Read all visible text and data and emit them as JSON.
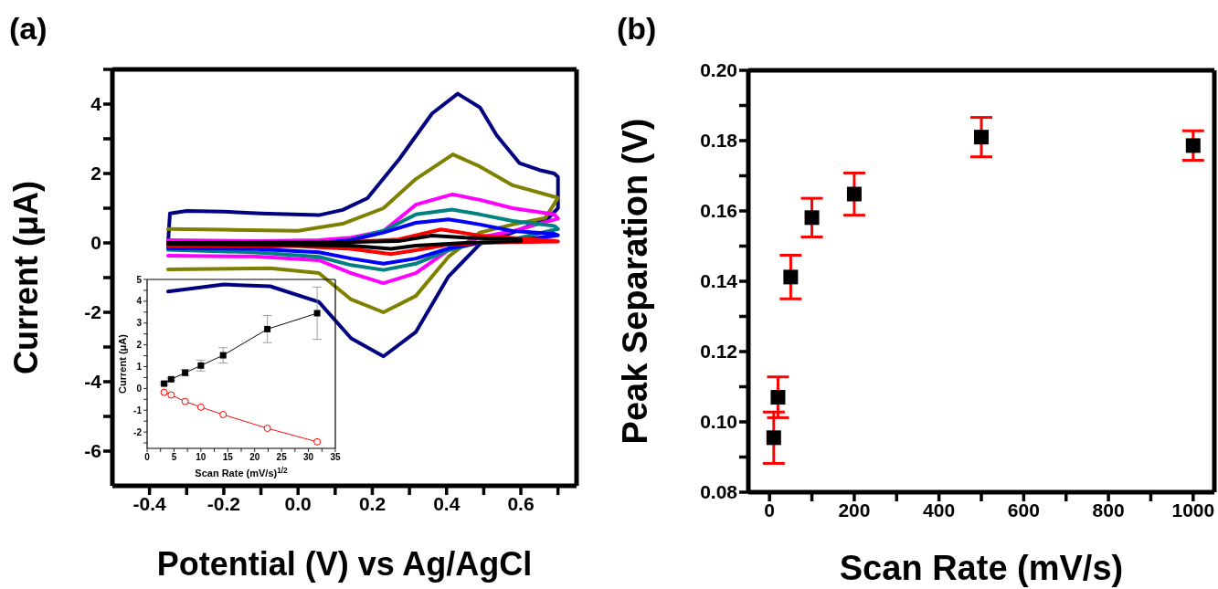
{
  "chart_data": [
    {
      "type": "line",
      "title": "(a)",
      "xlabel": "Potential (V) vs Ag/AgCl",
      "ylabel": "Current (μA)",
      "xlim": [
        -0.5,
        0.75
      ],
      "ylim": [
        -7,
        5
      ],
      "xticks": [
        -0.4,
        -0.2,
        {
          "value": 0,
          "label": "0.0"
        },
        0.2,
        0.4,
        0.6,
        {
          "value": -0.3,
          "label": null
        },
        {
          "value": -0.1,
          "label": null
        },
        {
          "value": 0.1,
          "label": null
        },
        {
          "value": 0.3,
          "label": null
        },
        {
          "value": 0.5,
          "label": null
        },
        {
          "value": 0.7,
          "label": null
        }
      ],
      "yticks": [
        -6,
        -4,
        -2,
        0,
        2,
        4,
        {
          "value": -5,
          "label": null
        },
        {
          "value": -3,
          "label": null
        },
        {
          "value": -1,
          "label": null
        },
        {
          "value": 1,
          "label": null
        },
        {
          "value": 3,
          "label": null
        },
        {
          "value": 5,
          "label": null
        }
      ],
      "grid": false,
      "legend": false,
      "marker": "none",
      "line_style": "solid",
      "series": [
        {
          "color": "#000080",
          "x": [
            -0.35,
            -0.345,
            -0.3,
            -0.2,
            -0.1,
            0.056,
            0.12,
            0.187,
            0.273,
            0.361,
            0.43,
            0.49,
            0.535,
            0.596,
            0.65,
            0.69,
            0.7,
            0.7,
            0.675,
            0.578,
            0.49,
            0.405,
            0.317,
            0.23,
            0.143,
            0.056,
            -0.075,
            -0.2,
            -0.35
          ],
          "values": [
            0,
            0.85,
            0.92,
            0.9,
            0.85,
            0.8,
            0.95,
            1.29,
            2.42,
            3.73,
            4.3,
            3.9,
            3.1,
            2.3,
            2.1,
            2.0,
            1.9,
            1.0,
            0.72,
            0.3,
            -0.03,
            -0.97,
            -2.57,
            -3.27,
            -2.75,
            -1.7,
            -1.25,
            -1.2,
            -1.4
          ]
        },
        {
          "color": "#808000",
          "x": [
            -0.35,
            -0.2,
            0.0,
            0.12,
            0.23,
            0.317,
            0.417,
            0.49,
            0.578,
            0.69,
            0.7,
            0.666,
            0.578,
            0.49,
            0.405,
            0.317,
            0.23,
            0.143,
            0.056,
            -0.075,
            -0.35
          ],
          "values": [
            0.4,
            0.38,
            0.35,
            0.55,
            1.0,
            1.84,
            2.55,
            2.2,
            1.66,
            1.33,
            1.3,
            0.72,
            0.53,
            0.3,
            -0.4,
            -1.53,
            -2.0,
            -1.63,
            -0.87,
            -0.73,
            -0.76
          ]
        },
        {
          "color": "#ff00ff",
          "x": [
            -0.35,
            -0.1,
            0.056,
            0.143,
            0.23,
            0.317,
            0.415,
            0.49,
            0.578,
            0.69,
            0.7,
            0.578,
            0.49,
            0.405,
            0.317,
            0.23,
            0.143,
            0.056,
            -0.12,
            -0.35
          ],
          "values": [
            0.08,
            0.05,
            0.08,
            0.15,
            0.34,
            1.1,
            1.4,
            1.24,
            1.0,
            0.82,
            0.7,
            0.34,
            0.16,
            -0.21,
            -0.87,
            -1.16,
            -0.87,
            -0.5,
            -0.39,
            -0.37
          ]
        },
        {
          "color": "#008080",
          "x": [
            -0.35,
            -0.1,
            0.056,
            0.143,
            0.23,
            0.317,
            0.415,
            0.49,
            0.578,
            0.69,
            0.7,
            0.578,
            0.49,
            0.405,
            0.317,
            0.23,
            0.143,
            0.056,
            -0.12,
            -0.35
          ],
          "values": [
            -0.12,
            -0.12,
            -0.06,
            0.1,
            0.35,
            0.82,
            0.96,
            0.82,
            0.63,
            0.49,
            0.4,
            0.1,
            0.02,
            -0.21,
            -0.6,
            -0.78,
            -0.64,
            -0.4,
            -0.27,
            -0.2
          ]
        },
        {
          "color": "#0000ff",
          "x": [
            -0.35,
            -0.1,
            0.056,
            0.143,
            0.23,
            0.317,
            0.405,
            0.49,
            0.578,
            0.69,
            0.7,
            0.578,
            0.49,
            0.405,
            0.317,
            0.23,
            0.143,
            0.056,
            -0.12,
            -0.35
          ],
          "values": [
            -0.05,
            -0.05,
            0.0,
            0.08,
            0.3,
            0.58,
            0.68,
            0.53,
            0.34,
            0.26,
            0.22,
            0.06,
            0.0,
            -0.16,
            -0.45,
            -0.6,
            -0.45,
            -0.27,
            -0.17,
            -0.15
          ]
        },
        {
          "color": "#ff0000",
          "x": [
            -0.35,
            0.1,
            0.27,
            0.385,
            0.49,
            0.69,
            0.7,
            0.578,
            0.49,
            0.405,
            0.317,
            0.25,
            0.143,
            -0.03,
            -0.35
          ],
          "values": [
            0.0,
            0.0,
            0.1,
            0.39,
            0.21,
            0.06,
            0.04,
            0.02,
            0.0,
            -0.05,
            -0.21,
            -0.32,
            -0.17,
            -0.08,
            -0.08
          ]
        },
        {
          "color": "#000000",
          "x": [
            -0.35,
            0.1,
            0.27,
            0.36,
            0.45,
            0.6,
            0.6,
            0.45,
            0.317,
            0.25,
            0.143,
            -0.35
          ],
          "values": [
            0.0,
            0.02,
            0.05,
            0.21,
            0.15,
            0.1,
            0.05,
            0.0,
            -0.08,
            -0.17,
            -0.08,
            -0.03
          ]
        }
      ]
    },
    {
      "type": "line",
      "xlabel": "Scan Rate (mV/s)$^{1/2}$",
      "ylabel": "Current (μA)",
      "xlim": [
        0,
        35
      ],
      "ylim": [
        -2.75,
        5
      ],
      "xticks": [
        0,
        5,
        10,
        15,
        20,
        25,
        30,
        35,
        {
          "value": 2.5,
          "label": null
        },
        {
          "value": 7.5,
          "label": null
        },
        {
          "value": 12.5,
          "label": null
        },
        {
          "value": 17.5,
          "label": null
        },
        {
          "value": 22.5,
          "label": null
        },
        {
          "value": 27.5,
          "label": null
        },
        {
          "value": 32.5,
          "label": null
        }
      ],
      "yticks": [
        -2,
        -1,
        0,
        1,
        2,
        3,
        4,
        5,
        {
          "value": -2.5,
          "label": null
        },
        {
          "value": -1.5,
          "label": null
        },
        {
          "value": -0.5,
          "label": null
        },
        {
          "value": 0.5,
          "label": null
        },
        {
          "value": 1.5,
          "label": null
        },
        {
          "value": 2.5,
          "label": null
        },
        {
          "value": 3.5,
          "label": null
        },
        {
          "value": 4.5,
          "label": null
        }
      ],
      "grid": false,
      "legend": false,
      "line_style": "solid",
      "series": [
        {
          "color": "#000000",
          "marker": "square",
          "x": [
            3.16,
            4.47,
            7.07,
            10,
            14.14,
            22.36,
            31.62
          ],
          "values": [
            0.22,
            0.42,
            0.72,
            1.05,
            1.52,
            2.72,
            3.45
          ],
          "errors": [
            0.05,
            0.06,
            0.15,
            0.25,
            0.35,
            0.62,
            1.2
          ]
        },
        {
          "color": "#ff0000",
          "marker": "circle",
          "x": [
            3.16,
            4.47,
            7.07,
            10,
            14.14,
            22.36,
            31.62
          ],
          "values": [
            -0.18,
            -0.3,
            -0.6,
            -0.86,
            -1.2,
            -1.83,
            -2.45
          ]
        }
      ]
    },
    {
      "type": "scatter",
      "title": "(b)",
      "xlabel": "Scan Rate (mV/s)",
      "ylabel": "Peak Separation (V)",
      "xlim": [
        -50,
        1050
      ],
      "ylim": [
        0.08,
        0.2
      ],
      "xticks": [
        0,
        200,
        400,
        600,
        800,
        1000,
        {
          "value": 100,
          "label": null
        },
        {
          "value": 300,
          "label": null
        },
        {
          "value": 500,
          "label": null
        },
        {
          "value": 700,
          "label": null
        },
        {
          "value": 900,
          "label": null
        }
      ],
      "yticks": [
        0.08,
        {
          "value": 0.1,
          "label": "0.10"
        },
        0.12,
        0.14,
        0.16,
        0.18,
        {
          "value": 0.2,
          "label": "0.20"
        },
        {
          "value": 0.09,
          "label": null
        },
        {
          "value": 0.11,
          "label": null
        },
        {
          "value": 0.13,
          "label": null
        },
        {
          "value": 0.15,
          "label": null
        },
        {
          "value": 0.17,
          "label": null
        },
        {
          "value": 0.19,
          "label": null
        }
      ],
      "grid": false,
      "legend": false,
      "marker": "square",
      "x": [
        10,
        20,
        50,
        100,
        200,
        500,
        1000
      ],
      "series": [
        {
          "color": "#000000",
          "values": [
            0.0955,
            0.107,
            0.1412,
            0.1581,
            0.1648,
            0.181,
            0.1786
          ],
          "errors": [
            0.0073,
            0.0058,
            0.0062,
            0.0055,
            0.006,
            0.0056,
            0.0042
          ]
        }
      ]
    }
  ]
}
